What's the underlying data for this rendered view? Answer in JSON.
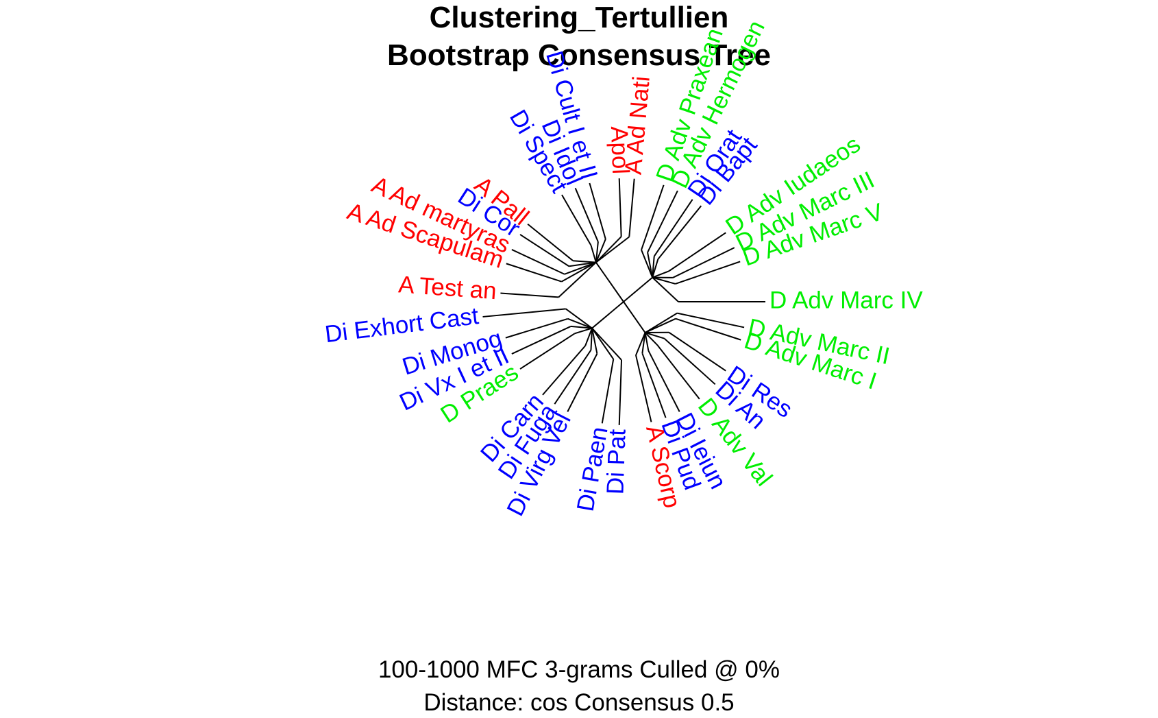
{
  "title_line1": "Clustering_Tertullien",
  "title_line2": "Bootstrap Consensus Tree",
  "subtitle_line1": "100-1000 MFC 3-grams Culled @ 0%",
  "subtitle_line2": "Distance: cos Consensus 0.5",
  "colors": {
    "A": "#ff0000",
    "D": "#00ee00",
    "Di": "#0000ff",
    "edge": "#000000"
  },
  "tree": {
    "center_hub": "root",
    "clusters": [
      {
        "name": "top-left",
        "leaves": [
          {
            "label": "A Ad Nati",
            "group": "A",
            "angle": -85
          },
          {
            "label": "Apol",
            "group": "A",
            "angle": -92
          },
          {
            "label": "Di Cult I et II",
            "group": "Di",
            "angle": -106
          },
          {
            "label": "Di Idol",
            "group": "Di",
            "angle": -113
          },
          {
            "label": "Di Spect",
            "group": "Di",
            "angle": -120
          },
          {
            "label": "A Pall",
            "group": "A",
            "angle": -141
          },
          {
            "label": "Di Cor",
            "group": "Di",
            "angle": -147
          },
          {
            "label": "A Ad martyras",
            "group": "A",
            "angle": -155
          },
          {
            "label": "A Ad Scapulam",
            "group": "A",
            "angle": -162
          },
          {
            "label": "A Test an",
            "group": "A",
            "angle": -176
          }
        ]
      },
      {
        "name": "top-right",
        "leaves": [
          {
            "label": "D Adv Hermogen",
            "group": "D",
            "angle": -64
          },
          {
            "label": "D Adv Praxean",
            "group": "D",
            "angle": -71
          },
          {
            "label": "Di Orat",
            "group": "Di",
            "angle": -56
          },
          {
            "label": "Di Bapt",
            "group": "Di",
            "angle": -51
          },
          {
            "label": "D Adv Iudaeos",
            "group": "D",
            "angle": -34
          },
          {
            "label": "D Adv Marc III",
            "group": "D",
            "angle": -26
          },
          {
            "label": "D Adv Marc V",
            "group": "D",
            "angle": -19
          },
          {
            "label": "D Adv Marc IV",
            "group": "D",
            "angle": 0
          }
        ]
      },
      {
        "name": "bottom-left",
        "leaves": [
          {
            "label": "Di Exhort Cast",
            "group": "Di",
            "angle": 173
          },
          {
            "label": "Di Monog",
            "group": "Di",
            "angle": 163
          },
          {
            "label": "Di Vx I et II",
            "group": "Di",
            "angle": 155
          },
          {
            "label": "D Praes",
            "group": "D",
            "angle": 147
          },
          {
            "label": "Di Carn",
            "group": "Di",
            "angle": 131
          },
          {
            "label": "Di Fuga",
            "group": "Di",
            "angle": 124
          },
          {
            "label": "Di Virg Vel",
            "group": "Di",
            "angle": 117
          },
          {
            "label": "Di Paen",
            "group": "Di",
            "angle": 100
          },
          {
            "label": "Di Pat",
            "group": "Di",
            "angle": 92
          }
        ]
      },
      {
        "name": "bottom-right",
        "leaves": [
          {
            "label": "D Adv Marc II",
            "group": "D",
            "angle": 12
          },
          {
            "label": "D Adv Marc I",
            "group": "D",
            "angle": 18
          },
          {
            "label": "Di Res",
            "group": "Di",
            "angle": 34
          },
          {
            "label": "Di An",
            "group": "Di",
            "angle": 42
          },
          {
            "label": "D Adv Val",
            "group": "D",
            "angle": 52
          },
          {
            "label": "Di Ieiun",
            "group": "Di",
            "angle": 63
          },
          {
            "label": "Di Pud",
            "group": "Di",
            "angle": 70
          },
          {
            "label": "A Scorp",
            "group": "A",
            "angle": 77
          }
        ]
      }
    ]
  }
}
